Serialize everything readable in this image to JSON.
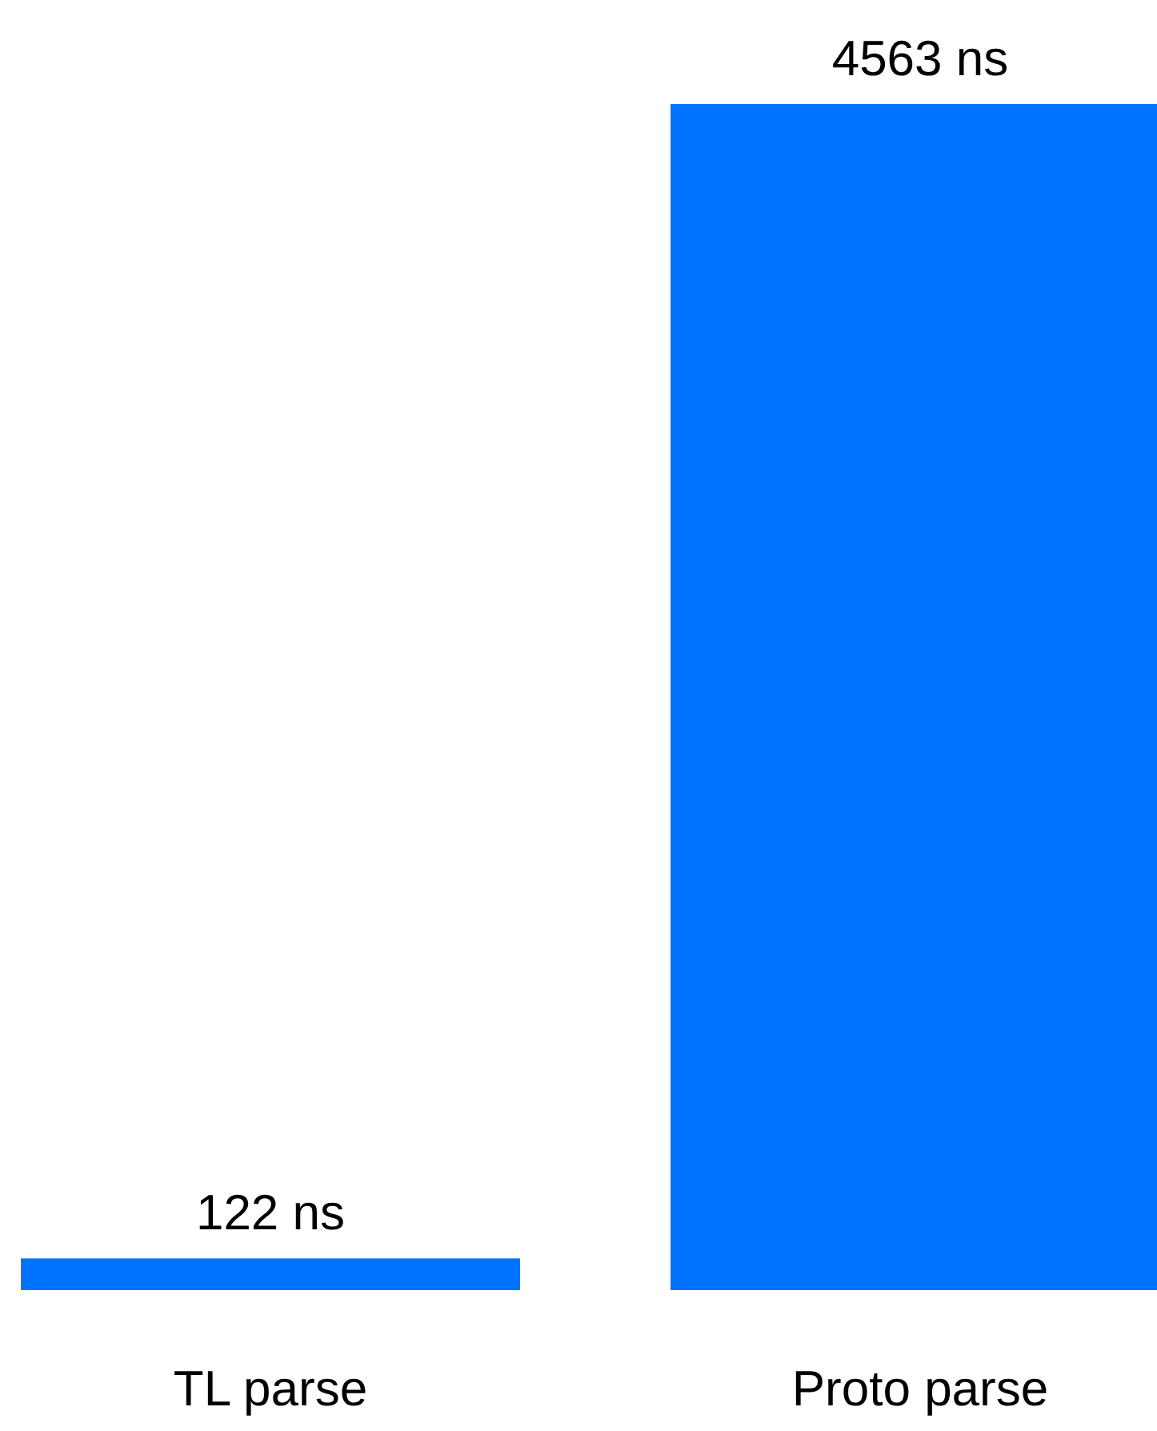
{
  "chart_data": {
    "type": "bar",
    "categories": [
      "TL parse",
      "Proto parse"
    ],
    "values": [
      122,
      4563
    ],
    "color": "#0073ff",
    "value_labels": [
      "122 ns",
      "4563 ns"
    ]
  }
}
